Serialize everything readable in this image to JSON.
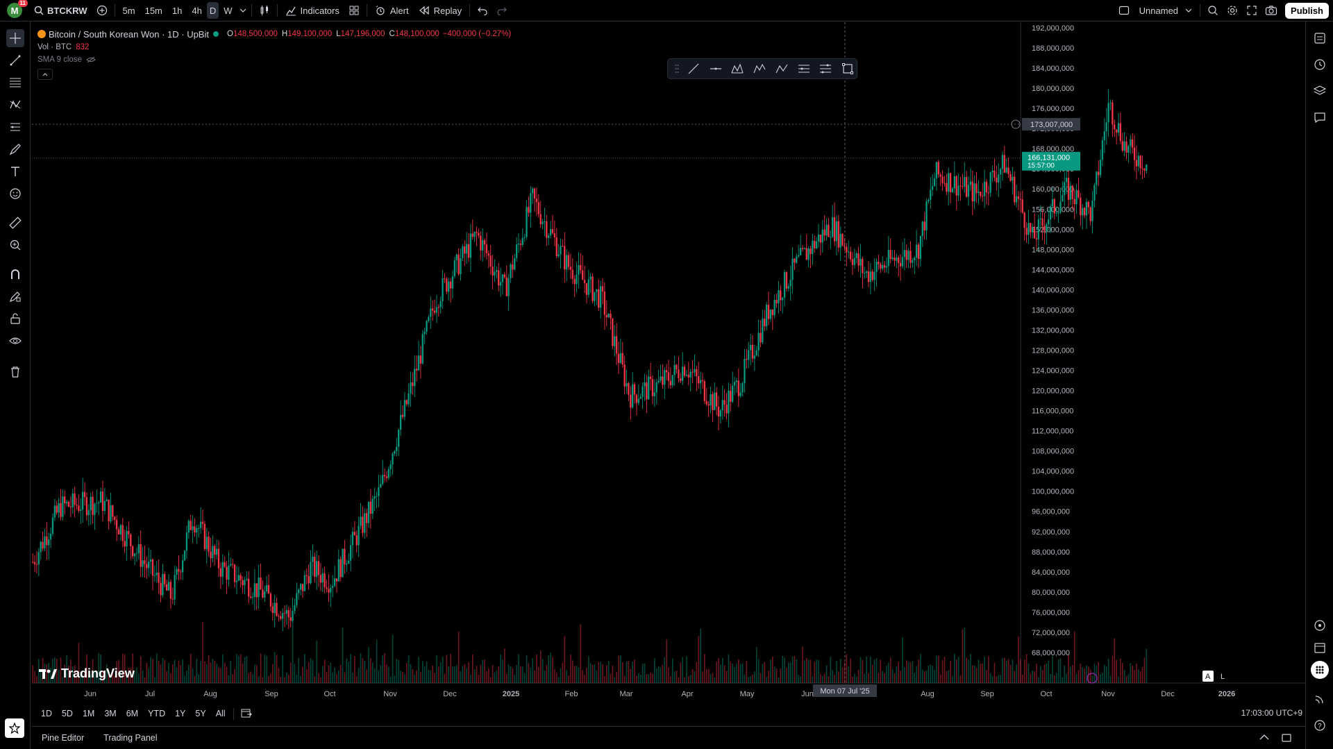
{
  "toolbar": {
    "avatar_letter": "M",
    "avatar_badge": "11",
    "symbol": "BTCKRW",
    "intervals": [
      "5m",
      "15m",
      "1h",
      "4h",
      "D",
      "W"
    ],
    "active_interval": "D",
    "indicators_label": "Indicators",
    "alert_label": "Alert",
    "replay_label": "Replay",
    "layout_name": "Unnamed",
    "publish_label": "Publish"
  },
  "legend": {
    "title": "Bitcoin / South Korean Won · 1D · UpBit",
    "o_label": "O",
    "o_value": "148,500,000",
    "h_label": "H",
    "h_value": "149,100,000",
    "l_label": "L",
    "l_value": "147,196,000",
    "c_label": "C",
    "c_value": "148,100,000",
    "change": "−400,000 (−0.27%)",
    "vol_label": "Vol · BTC",
    "vol_value": "832",
    "sma_label": "SMA 9 close"
  },
  "price_axis": {
    "ticks": [
      "192,000,000",
      "188,000,000",
      "184,000,000",
      "180,000,000",
      "176,000,000",
      "172,000,000",
      "168,000,000",
      "164,000,000",
      "160,000,000",
      "156,000,000",
      "152,000,000",
      "148,000,000",
      "144,000,000",
      "140,000,000",
      "136,000,000",
      "132,000,000",
      "128,000,000",
      "124,000,000",
      "120,000,000",
      "116,000,000",
      "112,000,000",
      "108,000,000",
      "104,000,000",
      "100,000,000",
      "96,000,000",
      "92,000,000",
      "88,000,000",
      "84,000,000",
      "80,000,000",
      "76,000,000",
      "72,000,000",
      "68,000,000"
    ],
    "crosshair_price": "173,007,000",
    "last_price": "166,131,000",
    "countdown": "15:57:00"
  },
  "time_axis": {
    "ticks": [
      "Jun",
      "Jul",
      "Aug",
      "Sep",
      "Oct",
      "Nov",
      "Dec",
      "2025",
      "Feb",
      "Mar",
      "Apr",
      "May",
      "Jun",
      "Jul",
      "Aug",
      "Sep",
      "Oct",
      "Nov",
      "Dec",
      "2026"
    ],
    "crosshair_label": "Mon 07 Jul '25"
  },
  "scale_buttons": {
    "auto": "A",
    "log": "L"
  },
  "ranges": [
    "1D",
    "5D",
    "1M",
    "3M",
    "6M",
    "YTD",
    "1Y",
    "5Y",
    "All"
  ],
  "clock": "17:03:00 UTC+9",
  "bottom_tabs": [
    "Pine Editor",
    "Trading Panel"
  ],
  "branding": "TradingView",
  "colors": {
    "up": "#089981",
    "down": "#f23645",
    "background": "#000000"
  },
  "chart_data": {
    "type": "candlestick",
    "symbol": "BTCKRW",
    "interval": "1D",
    "x": [
      "2024-06",
      "2024-07",
      "2024-08",
      "2024-09",
      "2024-10",
      "2024-11",
      "2024-12",
      "2025-01",
      "2025-02",
      "2025-03",
      "2025-04",
      "2025-05",
      "2025-06",
      "2025-07",
      "2025-08",
      "2025-09",
      "2025-10"
    ],
    "approx_close": [
      95000000,
      88000000,
      79000000,
      78000000,
      88000000,
      120000000,
      138000000,
      155000000,
      148000000,
      122000000,
      123000000,
      148000000,
      146000000,
      160000000,
      155000000,
      160000000,
      166000000
    ],
    "ylim": [
      66000000,
      193000000
    ],
    "last_close": 166131000
  }
}
